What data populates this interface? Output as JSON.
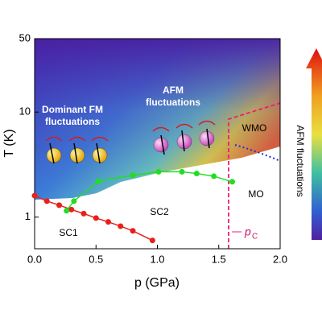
{
  "chart_data": {
    "type": "line",
    "xlabel": "p (GPa)",
    "ylabel": "T (K)",
    "xlim": [
      0,
      2.0
    ],
    "xticks": [
      {
        "value": 0,
        "label": "0.0"
      },
      0.5,
      {
        "value": 1,
        "label": "1.0"
      },
      1.5,
      {
        "value": 2,
        "label": "2.0"
      }
    ],
    "ylim": [
      0.5,
      50
    ],
    "yticks": [
      1,
      10,
      50
    ],
    "log_y": true,
    "series": [
      {
        "name": "SC1",
        "color": "#e8201c",
        "x": [
          0,
          0.1,
          0.2,
          0.3,
          0.4,
          0.5,
          0.6,
          0.7,
          0.8,
          0.96
        ],
        "values": [
          1.6,
          1.42,
          1.3,
          1.18,
          1.08,
          0.98,
          0.9,
          0.82,
          0.74,
          0.6
        ]
      },
      {
        "name": "SC2",
        "color": "#22dd22",
        "x": [
          0.26,
          0.32,
          0.52,
          0.8,
          1.01,
          1.2,
          1.32,
          1.46,
          1.61
        ],
        "values": [
          1.15,
          1.42,
          2.2,
          2.5,
          2.7,
          2.7,
          2.6,
          2.45,
          2.17
        ]
      }
    ],
    "annotations": {
      "sc1": "SC1",
      "sc2": "SC2",
      "mo": "MO",
      "wmo": "WMO",
      "fm": [
        "Dominant FM",
        "fluctuations"
      ],
      "afm": [
        "AFM",
        "fluctuations"
      ],
      "pc": "p",
      "pc_sub": "C"
    },
    "colorbar_label": "AFM fluctuations"
  }
}
